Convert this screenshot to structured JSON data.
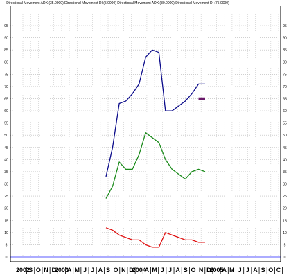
{
  "chart_data": {
    "type": "line",
    "title": "Directional Movement ADX (35.0000) Directional Movement DI (5.0000) Directional Movement ADX (30.0000) Directional Movement DI (75.0000)",
    "xlabel": "",
    "ylabel": "",
    "ylim": [
      0,
      100
    ],
    "yticks": [
      0,
      5,
      10,
      15,
      20,
      25,
      30,
      35,
      40,
      45,
      50,
      55,
      60,
      65,
      70,
      75,
      80,
      85,
      90,
      95
    ],
    "x_tick_labels": [
      "2002",
      "S",
      "O",
      "N",
      "D",
      "2003",
      "A",
      "M",
      "J",
      "J",
      "A",
      "S",
      "O",
      "N",
      "D",
      "2004",
      "A",
      "M",
      "J",
      "J",
      "A",
      "S",
      "O",
      "N",
      "D",
      "2005",
      "A",
      "M",
      "J",
      "J",
      "A",
      "S",
      "O",
      "C"
    ],
    "grid": true,
    "colors": {
      "blue": "#0a0a8a",
      "green": "#1a8a1a",
      "red": "#e01010",
      "purple": "#6a1a6a",
      "baseline": "#5a5aff"
    },
    "series": [
      {
        "color": "#0a0a8a",
        "x": [
          "2003-07",
          "2003-08",
          "2003-09",
          "2003-10",
          "2003-11",
          "2003-12",
          "2004-01",
          "2004-02",
          "2004-03",
          "2004-04",
          "2004-05",
          "2004-06",
          "2004-07",
          "2004-08",
          "2004-09",
          "2004-10"
        ],
        "values": [
          33,
          45,
          63,
          64,
          67,
          71,
          82,
          85,
          84,
          60,
          60,
          62,
          64,
          67,
          71,
          71
        ]
      },
      {
        "color": "#1a8a1a",
        "x": [
          "2003-07",
          "2003-08",
          "2003-09",
          "2003-10",
          "2003-11",
          "2003-12",
          "2004-01",
          "2004-02",
          "2004-03",
          "2004-04",
          "2004-05",
          "2004-06",
          "2004-07",
          "2004-08",
          "2004-09",
          "2004-10"
        ],
        "values": [
          24,
          29,
          39,
          36,
          36,
          42,
          51,
          49,
          47,
          40,
          36,
          34,
          32,
          35,
          36,
          35
        ]
      },
      {
        "color": "#e01010",
        "x": [
          "2003-07",
          "2003-08",
          "2003-09",
          "2003-10",
          "2003-11",
          "2003-12",
          "2004-01",
          "2004-02",
          "2004-03",
          "2004-04",
          "2004-05",
          "2004-06",
          "2004-07",
          "2004-08",
          "2004-09",
          "2004-10"
        ],
        "values": [
          12,
          11,
          9,
          8,
          7,
          7,
          5,
          4,
          4,
          10,
          9,
          8,
          7,
          7,
          6,
          6
        ]
      },
      {
        "color": "#6a1a6a",
        "x": [
          "2004-09",
          "2004-10"
        ],
        "values": [
          65,
          65
        ]
      }
    ]
  }
}
